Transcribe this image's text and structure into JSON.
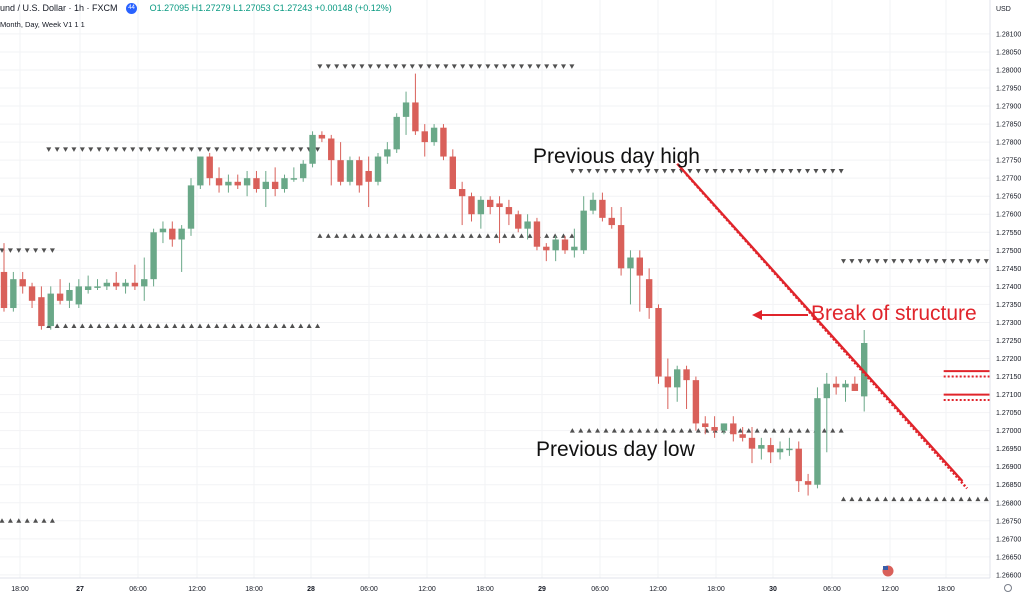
{
  "header": {
    "symbol": "und / U.S. Dollar · 1h · FXCM",
    "badge": "44",
    "ohlc": "O1.27095 H1.27279 L1.27053 C1.27243 +0.00148 (+0.12%)",
    "indicator": "Month, Day, Week V1  1  1"
  },
  "price_axis": {
    "currency": "USD",
    "labels": [
      "1.28100",
      "1.28050",
      "1.28000",
      "1.27950",
      "1.27900",
      "1.27850",
      "1.27800",
      "1.27750",
      "1.27700",
      "1.27650",
      "1.27600",
      "1.27550",
      "1.27500",
      "1.27450",
      "1.27400",
      "1.27350",
      "1.27300",
      "1.27250",
      "1.27200",
      "1.27150",
      "1.27100",
      "1.27050",
      "1.27000",
      "1.26950",
      "1.26900",
      "1.26850",
      "1.26800",
      "1.26750",
      "1.26700",
      "1.26650",
      "1.26600"
    ]
  },
  "time_axis": {
    "labels": [
      "18:00",
      "27",
      "06:00",
      "12:00",
      "18:00",
      "28",
      "06:00",
      "12:00",
      "18:00",
      "29",
      "06:00",
      "12:00",
      "18:00",
      "30",
      "06:00",
      "12:00",
      "18:00"
    ],
    "bold": [
      "27",
      "28",
      "29",
      "30"
    ]
  },
  "annotations": {
    "pdh": "Previous day high",
    "pdl": "Previous day low",
    "bos": "Break of structure"
  },
  "colors": {
    "up": "#6aa888",
    "down": "#d9605a",
    "annotation": "#e0242b",
    "marker": "#505050"
  },
  "chart_data": {
    "type": "candlestick",
    "symbol": "und / U.S. Dollar · 1h · FXCM",
    "timeframe": "1h",
    "ylim": [
      1.2659,
      1.2814
    ],
    "candles": [
      {
        "o": 1.2744,
        "h": 1.2752,
        "l": 1.2733,
        "c": 1.2734
      },
      {
        "o": 1.2734,
        "h": 1.2744,
        "l": 1.2733,
        "c": 1.2742
      },
      {
        "o": 1.2742,
        "h": 1.2744,
        "l": 1.2738,
        "c": 1.274
      },
      {
        "o": 1.274,
        "h": 1.2741,
        "l": 1.2734,
        "c": 1.2736
      },
      {
        "o": 1.2737,
        "h": 1.274,
        "l": 1.2728,
        "c": 1.2729
      },
      {
        "o": 1.2729,
        "h": 1.274,
        "l": 1.2728,
        "c": 1.2738
      },
      {
        "o": 1.2738,
        "h": 1.2742,
        "l": 1.2735,
        "c": 1.2736
      },
      {
        "o": 1.2736,
        "h": 1.2741,
        "l": 1.2734,
        "c": 1.2739
      },
      {
        "o": 1.2735,
        "h": 1.2742,
        "l": 1.2734,
        "c": 1.274
      },
      {
        "o": 1.2739,
        "h": 1.2743,
        "l": 1.2738,
        "c": 1.274
      },
      {
        "o": 1.274,
        "h": 1.2742,
        "l": 1.2739,
        "c": 1.274
      },
      {
        "o": 1.274,
        "h": 1.2742,
        "l": 1.2739,
        "c": 1.2741
      },
      {
        "o": 1.2741,
        "h": 1.2744,
        "l": 1.2739,
        "c": 1.274
      },
      {
        "o": 1.274,
        "h": 1.2742,
        "l": 1.2738,
        "c": 1.2741
      },
      {
        "o": 1.2741,
        "h": 1.2746,
        "l": 1.2739,
        "c": 1.274
      },
      {
        "o": 1.274,
        "h": 1.2748,
        "l": 1.2736,
        "c": 1.2742
      },
      {
        "o": 1.2742,
        "h": 1.2756,
        "l": 1.274,
        "c": 1.2755
      },
      {
        "o": 1.2755,
        "h": 1.2758,
        "l": 1.2752,
        "c": 1.2756
      },
      {
        "o": 1.2756,
        "h": 1.2758,
        "l": 1.2751,
        "c": 1.2753
      },
      {
        "o": 1.2753,
        "h": 1.2757,
        "l": 1.2744,
        "c": 1.2756
      },
      {
        "o": 1.2756,
        "h": 1.277,
        "l": 1.2754,
        "c": 1.2768
      },
      {
        "o": 1.2768,
        "h": 1.2776,
        "l": 1.2767,
        "c": 1.2776
      },
      {
        "o": 1.2776,
        "h": 1.2777,
        "l": 1.2768,
        "c": 1.277
      },
      {
        "o": 1.277,
        "h": 1.2773,
        "l": 1.2766,
        "c": 1.2768
      },
      {
        "o": 1.2768,
        "h": 1.2771,
        "l": 1.2766,
        "c": 1.2769
      },
      {
        "o": 1.2769,
        "h": 1.2771,
        "l": 1.2767,
        "c": 1.2768
      },
      {
        "o": 1.2768,
        "h": 1.2772,
        "l": 1.2765,
        "c": 1.277
      },
      {
        "o": 1.277,
        "h": 1.2772,
        "l": 1.2766,
        "c": 1.2767
      },
      {
        "o": 1.2767,
        "h": 1.2772,
        "l": 1.2762,
        "c": 1.2769
      },
      {
        "o": 1.2769,
        "h": 1.2773,
        "l": 1.2765,
        "c": 1.2767
      },
      {
        "o": 1.2767,
        "h": 1.2771,
        "l": 1.2766,
        "c": 1.277
      },
      {
        "o": 1.277,
        "h": 1.2773,
        "l": 1.2769,
        "c": 1.277
      },
      {
        "o": 1.277,
        "h": 1.2775,
        "l": 1.2769,
        "c": 1.2774
      },
      {
        "o": 1.2774,
        "h": 1.2783,
        "l": 1.2773,
        "c": 1.2782
      },
      {
        "o": 1.2782,
        "h": 1.2783,
        "l": 1.278,
        "c": 1.2781
      },
      {
        "o": 1.2781,
        "h": 1.2782,
        "l": 1.2768,
        "c": 1.2775
      },
      {
        "o": 1.2775,
        "h": 1.278,
        "l": 1.2768,
        "c": 1.2769
      },
      {
        "o": 1.2769,
        "h": 1.2776,
        "l": 1.2768,
        "c": 1.2775
      },
      {
        "o": 1.2775,
        "h": 1.2776,
        "l": 1.2766,
        "c": 1.2768
      },
      {
        "o": 1.2772,
        "h": 1.2776,
        "l": 1.2762,
        "c": 1.2769
      },
      {
        "o": 1.2769,
        "h": 1.2777,
        "l": 1.2768,
        "c": 1.2776
      },
      {
        "o": 1.2776,
        "h": 1.278,
        "l": 1.2774,
        "c": 1.2778
      },
      {
        "o": 1.2778,
        "h": 1.2788,
        "l": 1.2777,
        "c": 1.2787
      },
      {
        "o": 1.2787,
        "h": 1.2794,
        "l": 1.2782,
        "c": 1.2791
      },
      {
        "o": 1.2791,
        "h": 1.2799,
        "l": 1.2782,
        "c": 1.2783
      },
      {
        "o": 1.2783,
        "h": 1.2785,
        "l": 1.2776,
        "c": 1.278
      },
      {
        "o": 1.278,
        "h": 1.2785,
        "l": 1.2779,
        "c": 1.2784
      },
      {
        "o": 1.2784,
        "h": 1.2785,
        "l": 1.2775,
        "c": 1.2776
      },
      {
        "o": 1.2776,
        "h": 1.2778,
        "l": 1.2767,
        "c": 1.2767
      },
      {
        "o": 1.2767,
        "h": 1.2769,
        "l": 1.2757,
        "c": 1.2765
      },
      {
        "o": 1.2765,
        "h": 1.2766,
        "l": 1.2758,
        "c": 1.276
      },
      {
        "o": 1.276,
        "h": 1.2765,
        "l": 1.2756,
        "c": 1.2764
      },
      {
        "o": 1.2764,
        "h": 1.2765,
        "l": 1.276,
        "c": 1.2762
      },
      {
        "o": 1.2763,
        "h": 1.2765,
        "l": 1.2752,
        "c": 1.2762
      },
      {
        "o": 1.2762,
        "h": 1.2764,
        "l": 1.2757,
        "c": 1.276
      },
      {
        "o": 1.276,
        "h": 1.2761,
        "l": 1.2755,
        "c": 1.2756
      },
      {
        "o": 1.2756,
        "h": 1.276,
        "l": 1.2753,
        "c": 1.2758
      },
      {
        "o": 1.2758,
        "h": 1.2759,
        "l": 1.275,
        "c": 1.2751
      },
      {
        "o": 1.2751,
        "h": 1.2752,
        "l": 1.2747,
        "c": 1.275
      },
      {
        "o": 1.275,
        "h": 1.2754,
        "l": 1.2747,
        "c": 1.2753
      },
      {
        "o": 1.2753,
        "h": 1.2754,
        "l": 1.2749,
        "c": 1.275
      },
      {
        "o": 1.275,
        "h": 1.2756,
        "l": 1.2748,
        "c": 1.2751
      },
      {
        "o": 1.275,
        "h": 1.2765,
        "l": 1.2749,
        "c": 1.2761
      },
      {
        "o": 1.2761,
        "h": 1.2766,
        "l": 1.276,
        "c": 1.2764
      },
      {
        "o": 1.2764,
        "h": 1.2766,
        "l": 1.2758,
        "c": 1.2759
      },
      {
        "o": 1.2759,
        "h": 1.2762,
        "l": 1.2756,
        "c": 1.2757
      },
      {
        "o": 1.2757,
        "h": 1.2762,
        "l": 1.2743,
        "c": 1.2745
      },
      {
        "o": 1.2745,
        "h": 1.275,
        "l": 1.2735,
        "c": 1.2748
      },
      {
        "o": 1.2748,
        "h": 1.275,
        "l": 1.2733,
        "c": 1.2743
      },
      {
        "o": 1.2742,
        "h": 1.2745,
        "l": 1.2731,
        "c": 1.2734
      },
      {
        "o": 1.2734,
        "h": 1.2735,
        "l": 1.2713,
        "c": 1.2715
      },
      {
        "o": 1.2715,
        "h": 1.272,
        "l": 1.2706,
        "c": 1.2712
      },
      {
        "o": 1.2712,
        "h": 1.2718,
        "l": 1.2708,
        "c": 1.2717
      },
      {
        "o": 1.2717,
        "h": 1.2718,
        "l": 1.2706,
        "c": 1.2714
      },
      {
        "o": 1.2714,
        "h": 1.2715,
        "l": 1.27,
        "c": 1.2702
      },
      {
        "o": 1.2702,
        "h": 1.2704,
        "l": 1.2699,
        "c": 1.2701
      },
      {
        "o": 1.2701,
        "h": 1.2704,
        "l": 1.2698,
        "c": 1.27
      },
      {
        "o": 1.27,
        "h": 1.2702,
        "l": 1.2699,
        "c": 1.2702
      },
      {
        "o": 1.2702,
        "h": 1.2704,
        "l": 1.2697,
        "c": 1.2699
      },
      {
        "o": 1.2699,
        "h": 1.2701,
        "l": 1.2697,
        "c": 1.2698
      },
      {
        "o": 1.2698,
        "h": 1.2701,
        "l": 1.2691,
        "c": 1.2695
      },
      {
        "o": 1.2695,
        "h": 1.2698,
        "l": 1.2692,
        "c": 1.2696
      },
      {
        "o": 1.2696,
        "h": 1.2698,
        "l": 1.2691,
        "c": 1.2694
      },
      {
        "o": 1.2694,
        "h": 1.2697,
        "l": 1.2692,
        "c": 1.2695
      },
      {
        "o": 1.2695,
        "h": 1.2698,
        "l": 1.2693,
        "c": 1.2695
      },
      {
        "o": 1.2695,
        "h": 1.2697,
        "l": 1.2683,
        "c": 1.2686
      },
      {
        "o": 1.2686,
        "h": 1.2688,
        "l": 1.2682,
        "c": 1.2685
      },
      {
        "o": 1.2685,
        "h": 1.2712,
        "l": 1.2684,
        "c": 1.2709
      },
      {
        "o": 1.2709,
        "h": 1.2716,
        "l": 1.2694,
        "c": 1.2713
      },
      {
        "o": 1.2713,
        "h": 1.2715,
        "l": 1.271,
        "c": 1.2712
      },
      {
        "o": 1.2712,
        "h": 1.2714,
        "l": 1.2708,
        "c": 1.2713
      },
      {
        "o": 1.2713,
        "h": 1.2715,
        "l": 1.2711,
        "c": 1.2711
      },
      {
        "o": 1.27095,
        "h": 1.27279,
        "l": 1.27053,
        "c": 1.27243
      }
    ],
    "markers": [
      {
        "kind": "high",
        "dir": "down",
        "price": 1.275,
        "from": 0,
        "to": 5
      },
      {
        "kind": "low",
        "dir": "up",
        "price": 1.2675,
        "from": 0,
        "to": 5
      },
      {
        "kind": "high",
        "dir": "down",
        "price": 1.2778,
        "from": 5,
        "to": 34
      },
      {
        "kind": "low",
        "dir": "up",
        "price": 1.2729,
        "from": 5,
        "to": 34
      },
      {
        "kind": "high",
        "dir": "down",
        "price": 1.2801,
        "from": 34,
        "to": 61
      },
      {
        "kind": "low",
        "dir": "up",
        "price": 1.2754,
        "from": 34,
        "to": 61
      },
      {
        "kind": "high",
        "dir": "down",
        "price": 1.2772,
        "from": 61,
        "to": 90
      },
      {
        "kind": "low",
        "dir": "up",
        "price": 1.27,
        "from": 61,
        "to": 90
      },
      {
        "kind": "high",
        "dir": "down",
        "price": 1.2747,
        "from": 90,
        "to": 107
      },
      {
        "kind": "low",
        "dir": "up",
        "price": 1.2681,
        "from": 90,
        "to": 107
      }
    ],
    "annotation_lines": [
      {
        "style": "solid",
        "from": {
          "i": 72,
          "p": 1.2774
        },
        "to": {
          "i": 102.5,
          "p": 1.2686
        }
      },
      {
        "style": "dotted",
        "from": {
          "i": 73,
          "p": 1.2771
        },
        "to": {
          "i": 103,
          "p": 1.2684
        }
      }
    ],
    "box": {
      "from": 100.5,
      "to": 105.5,
      "levels": [
        1.27165,
        1.2715,
        1.271,
        1.27085
      ]
    }
  }
}
